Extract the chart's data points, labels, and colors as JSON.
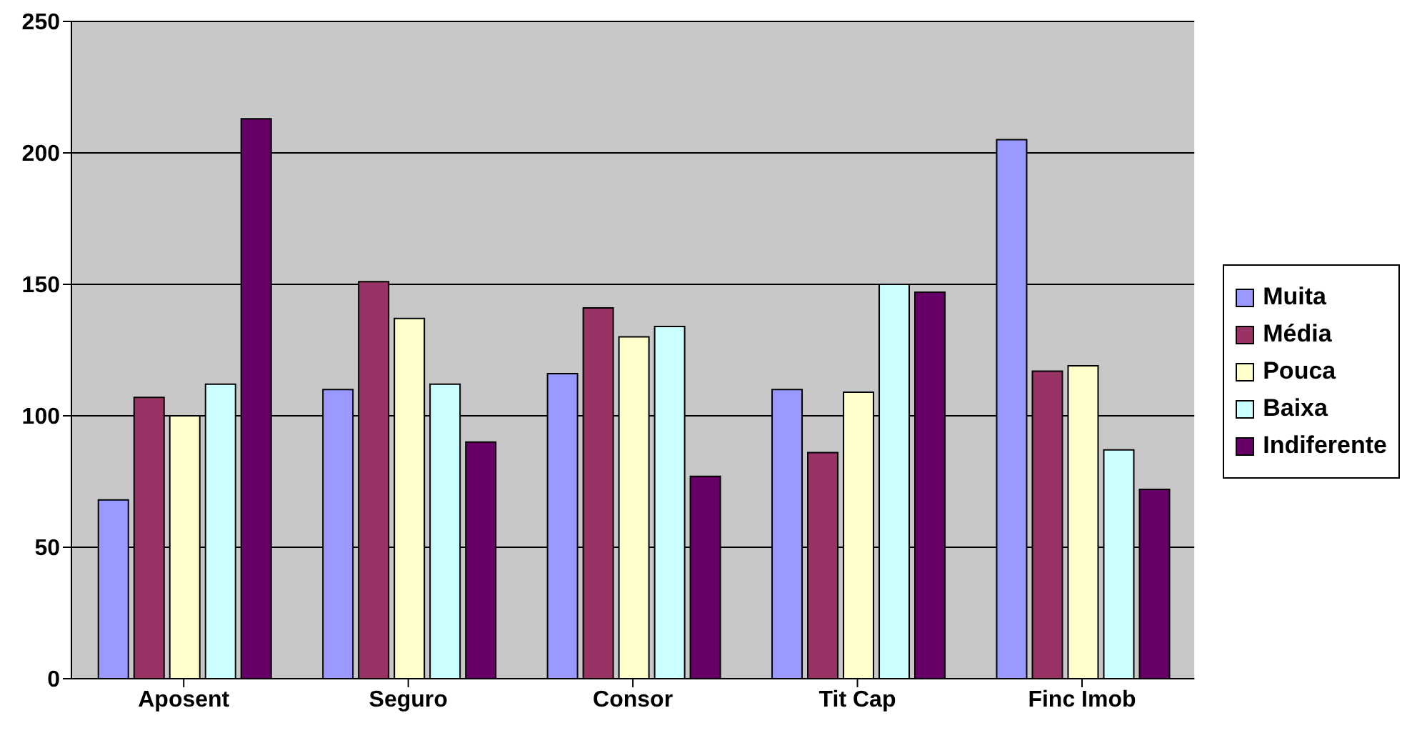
{
  "chart_data": {
    "type": "bar",
    "categories": [
      "Aposent",
      "Seguro",
      "Consor",
      "Tit Cap",
      "Finc Imob"
    ],
    "series": [
      {
        "name": "Muita",
        "color": "#9999ff",
        "values": [
          68,
          110,
          116,
          110,
          205
        ]
      },
      {
        "name": "Média",
        "color": "#993366",
        "values": [
          107,
          151,
          141,
          86,
          117
        ]
      },
      {
        "name": "Pouca",
        "color": "#ffffcc",
        "values": [
          100,
          137,
          130,
          109,
          119
        ]
      },
      {
        "name": "Baixa",
        "color": "#ccffff",
        "values": [
          112,
          112,
          134,
          150,
          87
        ]
      },
      {
        "name": "Indiferente",
        "color": "#660066",
        "values": [
          213,
          90,
          77,
          147,
          72
        ]
      }
    ],
    "ylim": [
      0,
      250
    ],
    "yticks": [
      0,
      50,
      100,
      150,
      200,
      250
    ],
    "grid": "y",
    "legend": "right"
  }
}
